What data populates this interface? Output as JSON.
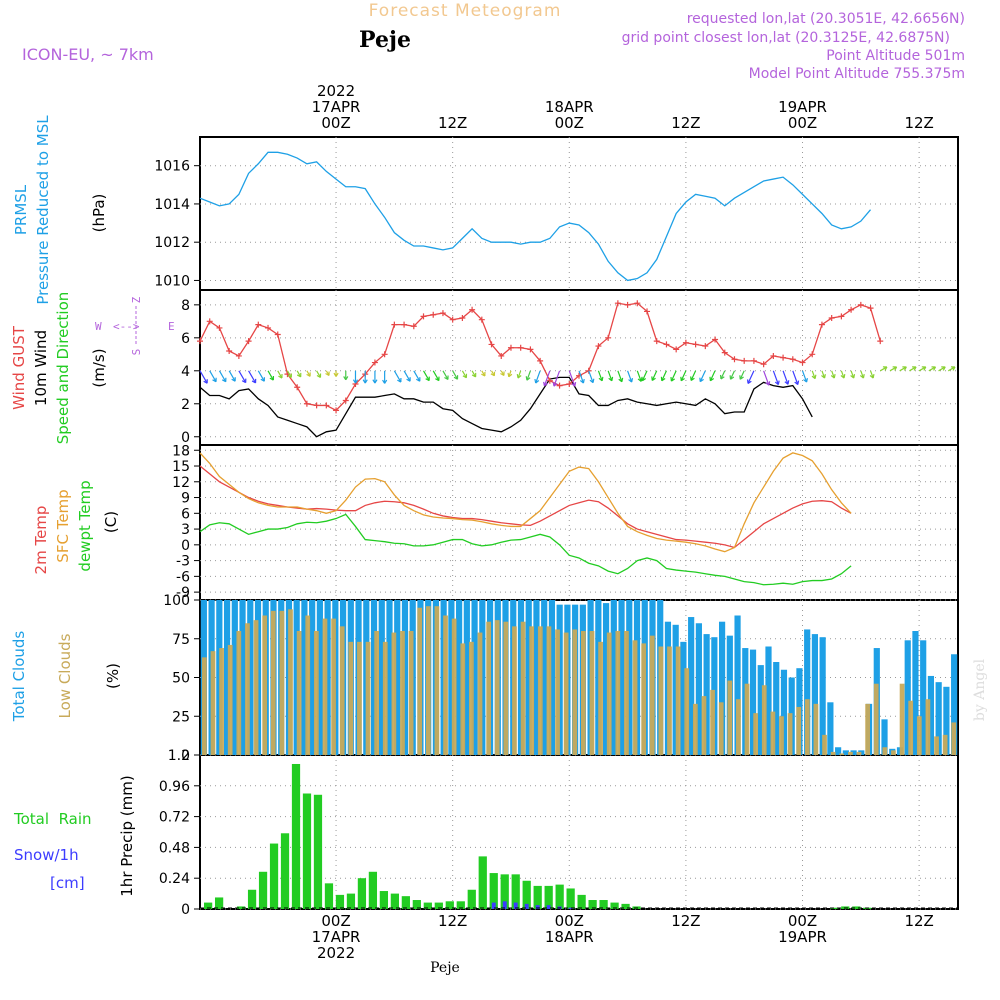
{
  "header": {
    "title": "Forecast Meteogram",
    "station": "Peje",
    "model": "ICON-EU, ~ 7km",
    "requested": "requested lon,lat (20.3051E, 42.6656N)",
    "gridpoint": "grid point closest lon,lat (20.3125E, 42.6875N)",
    "altitude": "Point Altitude 501m",
    "model_altitude": "Model Point Altitude 755.375m",
    "footer_station": "Peje",
    "watermark": "by Angel"
  },
  "time_axis": {
    "top": [
      {
        "lines": [
          "2022",
          "17APR",
          "00Z"
        ]
      },
      {
        "lines": [
          "12Z"
        ]
      },
      {
        "lines": [
          "18APR",
          "00Z"
        ]
      },
      {
        "lines": [
          "12Z"
        ]
      },
      {
        "lines": [
          "19APR",
          "00Z"
        ]
      },
      {
        "lines": [
          "12Z"
        ]
      }
    ],
    "bottom": [
      {
        "lines": [
          "00Z",
          "17APR",
          "2022"
        ]
      },
      {
        "lines": [
          "12Z"
        ]
      },
      {
        "lines": [
          "00Z",
          "18APR"
        ]
      },
      {
        "lines": [
          "12Z"
        ]
      },
      {
        "lines": [
          "00Z",
          "19APR"
        ]
      },
      {
        "lines": [
          "12Z"
        ]
      }
    ]
  },
  "colors": {
    "pressure": "#1ea0e6",
    "gust": "#e64646",
    "wind": "#000000",
    "t2m": "#e64646",
    "sfc": "#e6a030",
    "dew": "#22cc22",
    "total_clouds": "#1ea0e6",
    "low_clouds": "#c8aa5a",
    "rain": "#22cc22",
    "snow": "#3c3cff",
    "grid": "#999999",
    "title": "#f2c890",
    "purple": "#b464dc"
  },
  "panels": {
    "pressure": {
      "label1": "PRMSL",
      "label2": "Pressure Reduced to MSL",
      "unit": "(hPa)",
      "ticks": [
        "1016",
        "1014",
        "1012",
        "1010"
      ]
    },
    "wind": {
      "label1": "Wind GUST",
      "label2": "10m Wind",
      "label3": "Speed and Direction",
      "unit": "(m/s)",
      "ticks": [
        "8",
        "6",
        "4",
        "2",
        "0"
      ],
      "compass": {
        "n": "N",
        "s": "S",
        "w": "W",
        "e": "E",
        "z": "Z"
      }
    },
    "temp": {
      "label1": "2m Temp",
      "label2": "SFC Temp",
      "label3": "dewpt Temp",
      "unit": "(C)",
      "ticks": [
        "18",
        "15",
        "12",
        "9",
        "6",
        "3",
        "0",
        "-3",
        "-6",
        "-9"
      ]
    },
    "clouds": {
      "label1": "Total Clouds",
      "label2": "Low Clouds",
      "unit": "(%)",
      "ticks": [
        "100",
        "75",
        "50",
        "25",
        "0"
      ]
    },
    "precip": {
      "label1": "Total  Rain",
      "label2": "Snow/1h",
      "label3": "[cm]",
      "unit": "1hr Precip (mm)",
      "ticks": [
        "1.2",
        "0.96",
        "0.72",
        "0.48",
        "0.24",
        "0"
      ]
    }
  },
  "chart_data": {
    "type": "line",
    "x_hours_from_17APR_00Z": [
      -14,
      -13,
      -12,
      -11,
      -10,
      -9,
      -8,
      -7,
      -6,
      -5,
      -4,
      -3,
      -2,
      -1,
      0,
      1,
      2,
      3,
      4,
      5,
      6,
      7,
      8,
      9,
      10,
      11,
      12,
      13,
      14,
      15,
      16,
      17,
      18,
      19,
      20,
      21,
      22,
      23,
      24,
      25,
      26,
      27,
      28,
      29,
      30,
      31,
      32,
      33,
      34,
      35,
      36,
      37,
      38,
      39,
      40,
      41,
      42,
      43,
      44,
      45,
      46,
      47,
      48,
      49,
      50,
      51,
      52,
      53,
      54,
      55,
      56,
      57,
      58,
      59,
      60,
      61,
      62,
      63,
      64
    ],
    "pressure_hpa": [
      1014.3,
      1014.1,
      1013.9,
      1014.0,
      1014.5,
      1015.6,
      1016.1,
      1016.7,
      1016.7,
      1016.6,
      1016.4,
      1016.1,
      1016.2,
      1015.7,
      1015.3,
      1014.9,
      1014.9,
      1014.8,
      1014.0,
      1013.3,
      1012.5,
      1012.1,
      1011.8,
      1011.8,
      1011.7,
      1011.6,
      1011.7,
      1012.2,
      1012.7,
      1012.2,
      1012.0,
      1012.0,
      1012.0,
      1011.9,
      1012.0,
      1012.0,
      1012.2,
      1012.8,
      1013.0,
      1012.9,
      1012.5,
      1011.9,
      1011.0,
      1010.4,
      1010.0,
      1010.1,
      1010.4,
      1011.1,
      1012.3,
      1013.5,
      1014.1,
      1014.5,
      1014.4,
      1014.3,
      1013.9,
      1014.3,
      1014.6,
      1014.9,
      1015.2,
      1015.3,
      1015.4,
      1015.0,
      1014.5,
      1014.0,
      1013.5,
      1012.9,
      1012.7,
      1012.8,
      1013.1,
      1013.7
    ],
    "gust_ms": [
      5.8,
      7.0,
      6.6,
      5.2,
      4.9,
      5.8,
      6.8,
      6.6,
      6.2,
      3.8,
      3.0,
      2.0,
      1.9,
      1.9,
      1.6,
      2.2,
      3.2,
      3.8,
      4.5,
      5.0,
      6.8,
      6.8,
      6.7,
      7.3,
      7.4,
      7.5,
      7.1,
      7.2,
      7.7,
      7.1,
      5.6,
      4.9,
      5.4,
      5.4,
      5.3,
      4.6,
      3.4,
      3.1,
      3.2,
      3.7,
      4.0,
      5.5,
      6.0,
      8.1,
      8.0,
      8.1,
      7.6,
      5.8,
      5.6,
      5.3,
      5.7,
      5.6,
      5.5,
      5.9,
      5.1,
      4.7,
      4.6,
      4.6,
      4.4,
      4.9,
      4.8,
      4.7,
      4.5,
      5.0,
      6.8,
      7.2,
      7.3,
      7.7,
      8.0,
      7.8,
      5.8
    ],
    "wind_ms": [
      3.0,
      2.5,
      2.5,
      2.3,
      2.8,
      2.9,
      2.3,
      1.9,
      1.2,
      1.0,
      0.8,
      0.6,
      0.0,
      0.3,
      0.4,
      1.4,
      2.4,
      2.4,
      2.4,
      2.5,
      2.6,
      2.3,
      2.3,
      2.1,
      2.1,
      1.7,
      1.6,
      1.1,
      0.8,
      0.5,
      0.4,
      0.3,
      0.6,
      1.0,
      1.7,
      2.6,
      3.5,
      3.6,
      3.6,
      2.6,
      2.5,
      1.9,
      1.9,
      2.2,
      2.3,
      2.1,
      2.0,
      1.9,
      2.0,
      2.1,
      2.0,
      1.9,
      2.3,
      2.0,
      1.4,
      1.5,
      1.5,
      2.9,
      3.3,
      3.1,
      3.0,
      3.1,
      2.3,
      1.2
    ],
    "t2m_c": [
      15.0,
      13.5,
      12.0,
      11.0,
      10.0,
      9.0,
      8.3,
      7.8,
      7.5,
      7.2,
      7.0,
      6.8,
      6.9,
      6.8,
      6.6,
      6.5,
      6.5,
      7.5,
      8.0,
      8.3,
      8.2,
      8.0,
      7.5,
      6.8,
      6.0,
      5.5,
      5.2,
      5.0,
      5.0,
      4.8,
      4.5,
      4.2,
      4.0,
      3.8,
      3.7,
      4.5,
      5.5,
      6.5,
      7.5,
      8.0,
      8.5,
      8.2,
      7.0,
      5.5,
      4.0,
      3.0,
      2.5,
      2.0,
      1.5,
      1.0,
      0.9,
      0.7,
      0.5,
      0.3,
      0.0,
      -0.5,
      1.0,
      2.5,
      4.0,
      5.0,
      6.0,
      7.0,
      7.8,
      8.3,
      8.4,
      8.2,
      7.0,
      6.0
    ],
    "sfc_c": [
      17.5,
      15.5,
      13.0,
      11.5,
      10.0,
      8.8,
      8.0,
      7.5,
      7.2,
      7.2,
      7.2,
      6.8,
      6.5,
      6.0,
      6.5,
      8.5,
      11.0,
      12.5,
      12.6,
      12.0,
      9.5,
      7.5,
      6.5,
      5.7,
      5.3,
      5.1,
      5.0,
      4.8,
      4.7,
      4.4,
      4.0,
      3.7,
      3.5,
      3.5,
      5.0,
      6.5,
      9.0,
      11.5,
      14.0,
      14.8,
      14.5,
      12.0,
      9.0,
      6.0,
      3.5,
      2.5,
      1.8,
      1.2,
      0.9,
      0.7,
      0.5,
      0.2,
      -0.2,
      -0.8,
      -1.3,
      -0.5,
      4.0,
      8.0,
      11.0,
      14.0,
      16.5,
      17.5,
      17.0,
      16.0,
      13.5,
      10.5,
      8.0,
      6.0
    ],
    "dew_c": [
      2.5,
      3.8,
      4.2,
      4.0,
      3.0,
      2.0,
      2.5,
      3.0,
      3.0,
      3.3,
      4.0,
      4.3,
      4.2,
      4.5,
      5.0,
      5.8,
      3.5,
      1.0,
      0.8,
      0.6,
      0.3,
      0.2,
      -0.2,
      -0.2,
      0.0,
      0.5,
      1.0,
      1.0,
      0.2,
      -0.2,
      0.0,
      0.5,
      0.9,
      1.0,
      1.5,
      2.0,
      1.5,
      0.0,
      -2.0,
      -2.5,
      -3.5,
      -4.0,
      -5.0,
      -5.5,
      -4.5,
      -3.0,
      -2.5,
      -3.0,
      -4.5,
      -4.8,
      -5.0,
      -5.2,
      -5.5,
      -5.8,
      -6.0,
      -6.5,
      -7.0,
      -7.2,
      -7.6,
      -7.5,
      -7.3,
      -7.5,
      -7.0,
      -6.8,
      -6.8,
      -6.5,
      -5.5,
      -4.0
    ],
    "total_clouds_pct": [
      100,
      100,
      100,
      100,
      100,
      100,
      100,
      100,
      100,
      100,
      100,
      100,
      100,
      100,
      100,
      100,
      100,
      100,
      100,
      100,
      100,
      100,
      100,
      100,
      100,
      100,
      100,
      100,
      100,
      100,
      100,
      100,
      100,
      100,
      100,
      100,
      100,
      100,
      100,
      100,
      100,
      100,
      100,
      100,
      100,
      100,
      97,
      97,
      97,
      97,
      100,
      100,
      98,
      100,
      100,
      100,
      100,
      100,
      100,
      100,
      86,
      84,
      73,
      89,
      85,
      78,
      76,
      86,
      77,
      90,
      69,
      68,
      58,
      70,
      60,
      55,
      50,
      56,
      81,
      78,
      76,
      34,
      5,
      3,
      3,
      3,
      33,
      69,
      23,
      4,
      5,
      74,
      80,
      74,
      51,
      47,
      44,
      65
    ],
    "low_clouds_pct": [
      63,
      67,
      69,
      71,
      80,
      85,
      87,
      90,
      93,
      93,
      94,
      80,
      90,
      80,
      88,
      88,
      83,
      73,
      73,
      73,
      80,
      73,
      79,
      80,
      80,
      95,
      96,
      96,
      90,
      88,
      72,
      73,
      79,
      86,
      87,
      86,
      83,
      86,
      83,
      83,
      83,
      81,
      79,
      81,
      80,
      80,
      73,
      79,
      80,
      80,
      74,
      72,
      77,
      70,
      70,
      70,
      56,
      33,
      38,
      42,
      34,
      48,
      36,
      46,
      27,
      45,
      28,
      25,
      27,
      31,
      36,
      33,
      13,
      2,
      1,
      2,
      2,
      33,
      46,
      5,
      3,
      46,
      35,
      25,
      36,
      12,
      13,
      21
    ],
    "precip_mm": [
      0.05,
      0.09,
      0.0,
      0.02,
      0.15,
      0.29,
      0.51,
      0.59,
      1.13,
      0.9,
      0.89,
      0.2,
      0.11,
      0.12,
      0.24,
      0.29,
      0.14,
      0.12,
      0.1,
      0.07,
      0.05,
      0.05,
      0.06,
      0.06,
      0.15,
      0.41,
      0.28,
      0.27,
      0.27,
      0.22,
      0.18,
      0.18,
      0.19,
      0.16,
      0.11,
      0.07,
      0.07,
      0.05,
      0.04,
      0.02,
      0.0,
      0.0,
      0.0,
      0.0,
      0.0,
      0.0,
      0.0,
      0.0,
      0.0,
      0.0,
      0.0,
      0.0,
      0.0,
      0.0,
      0.0,
      0.0,
      0.0,
      0.01,
      0.02,
      0.02,
      0.01,
      0.0,
      0.0,
      0.0,
      0.0,
      0.0,
      0.0,
      0.0
    ],
    "snow_cm": [
      0.0,
      0.0,
      0.0,
      0.0,
      0.0,
      0.0,
      0.0,
      0.0,
      0.0,
      0.0,
      0.0,
      0.0,
      0.0,
      0.0,
      0.0,
      0.0,
      0.0,
      0.0,
      0.0,
      0.0,
      0.0,
      0.0,
      0.0,
      0.0,
      0.0,
      0.0,
      0.05,
      0.06,
      0.05,
      0.04,
      0.03,
      0.03,
      0.02,
      0.01,
      0.0,
      0.0,
      0.0,
      0.0,
      0.0,
      0.0,
      0.0,
      0.0,
      0.0,
      0.0,
      0.0,
      0.0,
      0.0,
      0.0,
      0.0,
      0.0,
      0.0,
      0.0,
      0.0,
      0.0,
      0.0,
      0.0,
      0.0,
      0.0,
      0.0,
      0.0,
      0.0,
      0.0,
      0.0,
      0.0,
      0.0,
      0.0,
      0.0,
      0.0
    ],
    "ylim_pressure": [
      1009.5,
      1017.5
    ],
    "ylim_wind": [
      -0.5,
      8.9
    ],
    "ylim_temp": [
      -10.5,
      19
    ],
    "ylim_clouds": [
      0,
      100
    ],
    "ylim_precip": [
      0,
      1.2
    ]
  }
}
